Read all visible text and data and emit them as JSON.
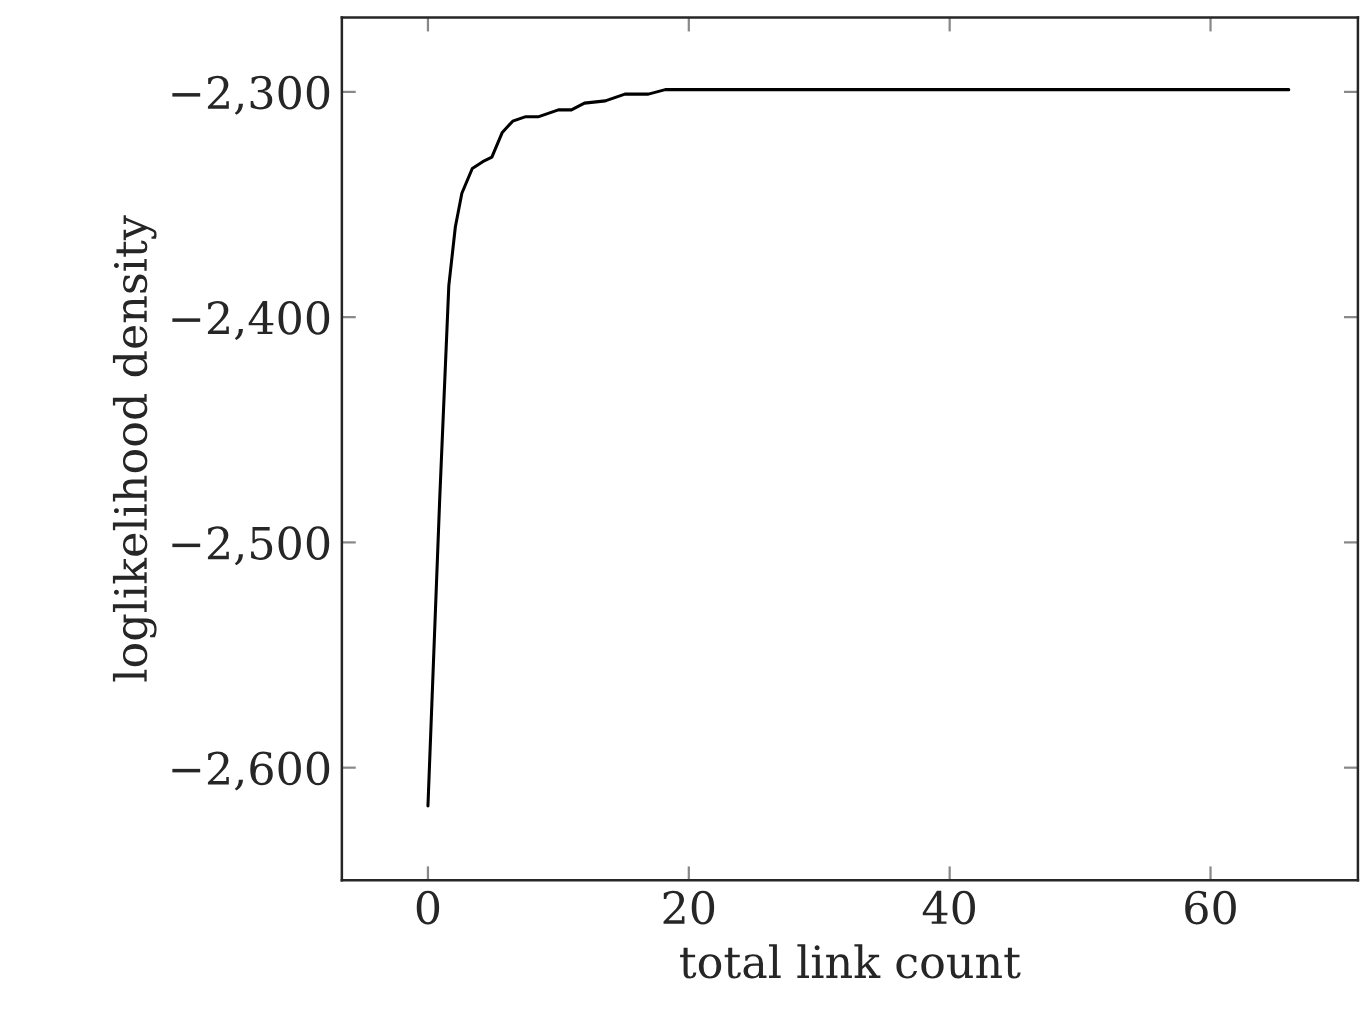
{
  "chart_data": {
    "type": "line",
    "xlabel": "total link count",
    "ylabel": "loglikelihood density",
    "xlim": [
      -6.6,
      71.3
    ],
    "ylim": [
      -2650,
      -2267
    ],
    "xticks": [
      0,
      20,
      40,
      60
    ],
    "yticks": [
      {
        "value": -2600,
        "label": "−2,600"
      },
      {
        "value": -2500,
        "label": "−2,500"
      },
      {
        "value": -2400,
        "label": "−2,400"
      },
      {
        "value": -2300,
        "label": "−2,300"
      }
    ],
    "marker": "none",
    "line_style": "solid",
    "series": [
      {
        "color": "#000000",
        "x": [
          0,
          0.9,
          1.6,
          2.1,
          2.6,
          3.4,
          4.2,
          4.9,
          5.7,
          6.5,
          7.5,
          8.5,
          10,
          11,
          12,
          13.6,
          15.1,
          16.9,
          18.2,
          66
        ],
        "values": [
          -2617,
          -2481,
          -2386,
          -2360,
          -2345,
          -2334,
          -2331,
          -2329,
          -2318,
          -2313,
          -2311,
          -2311,
          -2308,
          -2308,
          -2305,
          -2304,
          -2301,
          -2301,
          -2299,
          -2299
        ]
      }
    ]
  }
}
